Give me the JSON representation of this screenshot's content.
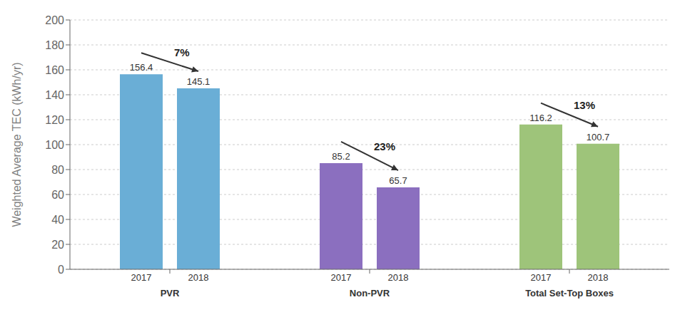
{
  "chart_data": {
    "type": "bar",
    "categories": [
      "PVR",
      "Non-PVR",
      "Total Set-Top Boxes"
    ],
    "series": [
      {
        "name": "2017",
        "values": [
          156.4,
          85.2,
          116.2
        ],
        "colors": [
          "#6aaed6",
          "#8b6fbf",
          "#9ec47a"
        ]
      },
      {
        "name": "2018",
        "values": [
          145.1,
          65.7,
          100.7
        ],
        "colors": [
          "#6aaed6",
          "#8b6fbf",
          "#9ec47a"
        ]
      }
    ],
    "y_label": "Weighted Average TEC (kWh/yr)",
    "ylim": [
      0,
      200
    ],
    "yticks": [
      0,
      20,
      40,
      60,
      80,
      100,
      120,
      140,
      160,
      180,
      200
    ],
    "annotations": [
      "7%",
      "23%",
      "13%"
    ],
    "data_labels": true,
    "grid": true
  }
}
